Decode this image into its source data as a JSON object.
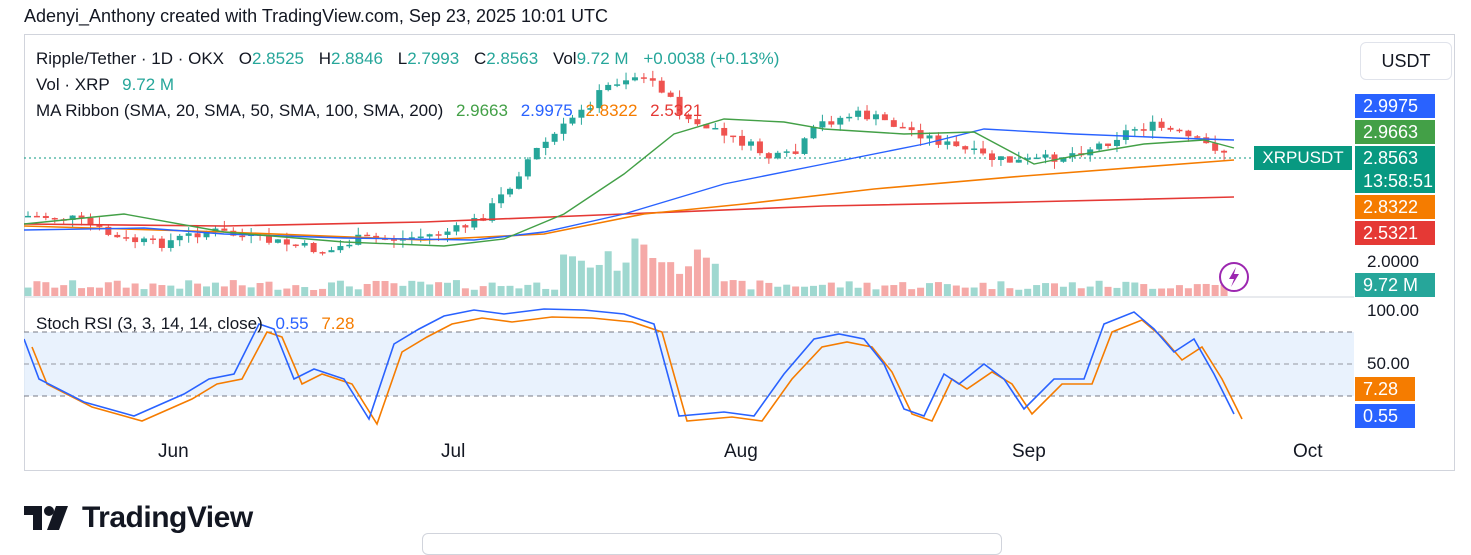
{
  "attribution": "Adenyi_Anthony created with TradingView.com, Sep 23, 2025 10:01 UTC",
  "legend": {
    "symbol": "Ripple/Tether · 1D · OKX",
    "o_label": "O",
    "o_value": "2.8525",
    "h_label": "H",
    "h_value": "2.8846",
    "l_label": "L",
    "l_value": "2.7993",
    "c_label": "C",
    "c_value": "2.8563",
    "vol_label": "Vol",
    "vol_value": "9.72 M",
    "change": "+0.0038 (+0.13%)",
    "vol_line_label": "Vol · XRP",
    "vol_line_value": "9.72 M",
    "ma_label": "MA Ribbon (SMA, 20, SMA, 50, SMA, 100, SMA, 200)",
    "ma_values": [
      "2.9663",
      "2.9975",
      "2.8322",
      "2.5321"
    ],
    "stoch_label": "Stoch RSI (3, 3, 14, 14, close)",
    "stoch_k": "0.55",
    "stoch_d": "7.28"
  },
  "currency_button": "USDT",
  "price_axis": {
    "tags": [
      {
        "value": "2.9975",
        "color": "#2962ff"
      },
      {
        "value": "2.9663",
        "color": "#43a047"
      },
      {
        "value": "2.8563",
        "color": "#089981"
      },
      {
        "value": "13:58:51",
        "color": "#089981"
      },
      {
        "value": "2.8322",
        "color": "#f57c00"
      },
      {
        "value": "2.5321",
        "color": "#e53935"
      },
      {
        "value": "9.72 M",
        "color": "#26a69a"
      }
    ],
    "symbol_tag": "XRPUSDT",
    "label_2": "2.0000"
  },
  "rsi_axis": {
    "labels": [
      "100.00",
      "50.00"
    ],
    "d_tag": "7.28",
    "k_tag": "0.55"
  },
  "months": [
    "Jun",
    "Jul",
    "Aug",
    "Sep",
    "Oct"
  ],
  "brand": "TradingView",
  "colors": {
    "up": "#26a69a",
    "down": "#ef5350",
    "ma20": "#43a047",
    "ma50": "#2962ff",
    "ma100": "#f57c00",
    "ma200": "#e53935",
    "stoch_k": "#2962ff",
    "stoch_d": "#f57c00"
  }
}
